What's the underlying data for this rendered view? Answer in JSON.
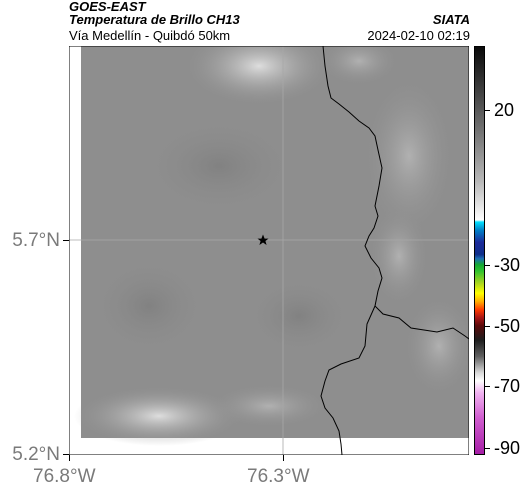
{
  "header": {
    "satellite": "GOES-EAST",
    "product": "Temperatura de Brillo CH13",
    "organization": "SIATA",
    "region": "Vía Medellín - Quibdó 50km",
    "datetime": "2024-02-10 02:19"
  },
  "map": {
    "y_ticks": [
      {
        "label": "5.7°N",
        "value": 5.7
      },
      {
        "label": "5.2°N",
        "value": 5.2
      }
    ],
    "x_ticks": [
      {
        "label": "76.8°W",
        "value": -76.8
      },
      {
        "label": "76.3°W",
        "value": -76.3
      }
    ],
    "marker_icon": "star-icon"
  },
  "colorbar": {
    "ticks": [
      {
        "label": "20",
        "value": 20
      },
      {
        "label": "-30",
        "value": -30
      },
      {
        "label": "-50",
        "value": -50
      },
      {
        "label": "-70",
        "value": -70
      },
      {
        "label": "-90",
        "value": -90
      }
    ]
  }
}
